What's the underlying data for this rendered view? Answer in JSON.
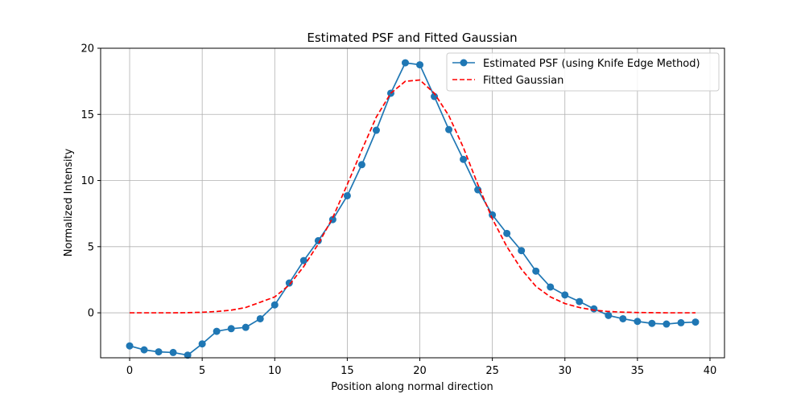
{
  "chart_data": {
    "type": "line",
    "title": "Estimated PSF and Fitted Gaussian",
    "xlabel": "Position along normal direction",
    "ylabel": "Normalized Intensity",
    "xlim": [
      -2,
      41
    ],
    "ylim": [
      -3.4,
      20
    ],
    "xticks": [
      0,
      5,
      10,
      15,
      20,
      25,
      30,
      35,
      40
    ],
    "yticks": [
      0,
      5,
      10,
      15,
      20
    ],
    "grid": true,
    "legend_position": "upper-right",
    "series": [
      {
        "name": "Estimated PSF (using Knife Edge Method)",
        "style": "solid-with-markers",
        "color": "#1f77b4",
        "x": [
          0,
          1,
          2,
          3,
          4,
          5,
          6,
          7,
          8,
          9,
          10,
          11,
          12,
          13,
          14,
          15,
          16,
          17,
          18,
          19,
          20,
          21,
          22,
          23,
          24,
          25,
          26,
          27,
          28,
          29,
          30,
          31,
          32,
          33,
          34,
          35,
          36,
          37,
          38,
          39
        ],
        "y": [
          -2.5,
          -2.8,
          -2.95,
          -3.0,
          -3.2,
          -2.35,
          -1.4,
          -1.2,
          -1.1,
          -0.45,
          0.6,
          2.25,
          3.95,
          5.45,
          7.05,
          8.85,
          11.2,
          13.8,
          16.6,
          18.9,
          18.75,
          16.35,
          13.85,
          11.6,
          9.3,
          7.4,
          6.0,
          4.7,
          3.15,
          1.95,
          1.35,
          0.85,
          0.3,
          -0.2,
          -0.45,
          -0.65,
          -0.8,
          -0.85,
          -0.75,
          -0.7
        ]
      },
      {
        "name": "Fitted Gaussian",
        "style": "dashed",
        "color": "#ff0000",
        "x": [
          0,
          1,
          2,
          3,
          4,
          5,
          6,
          7,
          8,
          9,
          10,
          11,
          12,
          13,
          14,
          15,
          16,
          17,
          18,
          19,
          20,
          21,
          22,
          23,
          24,
          25,
          26,
          27,
          28,
          29,
          30,
          31,
          32,
          33,
          34,
          35,
          36,
          37,
          38,
          39
        ],
        "y": [
          0.0,
          0.0,
          0.0,
          0.0,
          0.01,
          0.04,
          0.1,
          0.2,
          0.4,
          0.8,
          1.2,
          2.1,
          3.5,
          5.2,
          7.2,
          9.7,
          12.3,
          14.8,
          16.6,
          17.5,
          17.6,
          16.6,
          14.9,
          12.5,
          9.7,
          7.1,
          5.0,
          3.3,
          2.0,
          1.2,
          0.7,
          0.4,
          0.2,
          0.1,
          0.05,
          0.02,
          0.01,
          0.0,
          0.0,
          0.0
        ]
      }
    ]
  }
}
